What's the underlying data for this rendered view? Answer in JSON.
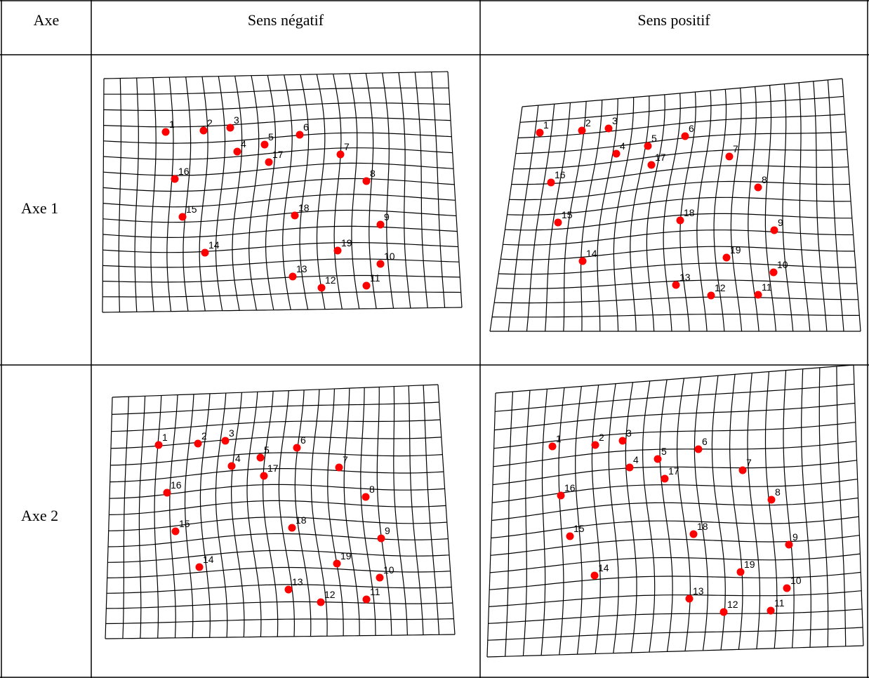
{
  "headers": {
    "axis": "Axe",
    "negative": "Sens négatif",
    "positive": "Sens positif"
  },
  "rows": [
    {
      "label": "Axe 1"
    },
    {
      "label": "Axe 2"
    }
  ],
  "landmark_labels": [
    "1",
    "2",
    "3",
    "4",
    "5",
    "6",
    "7",
    "8",
    "9",
    "10",
    "11",
    "12",
    "13",
    "14",
    "15",
    "16",
    "17",
    "18",
    "19"
  ],
  "colors": {
    "grid": "#000000",
    "landmark": "#ff0000",
    "border": "#000000"
  }
}
